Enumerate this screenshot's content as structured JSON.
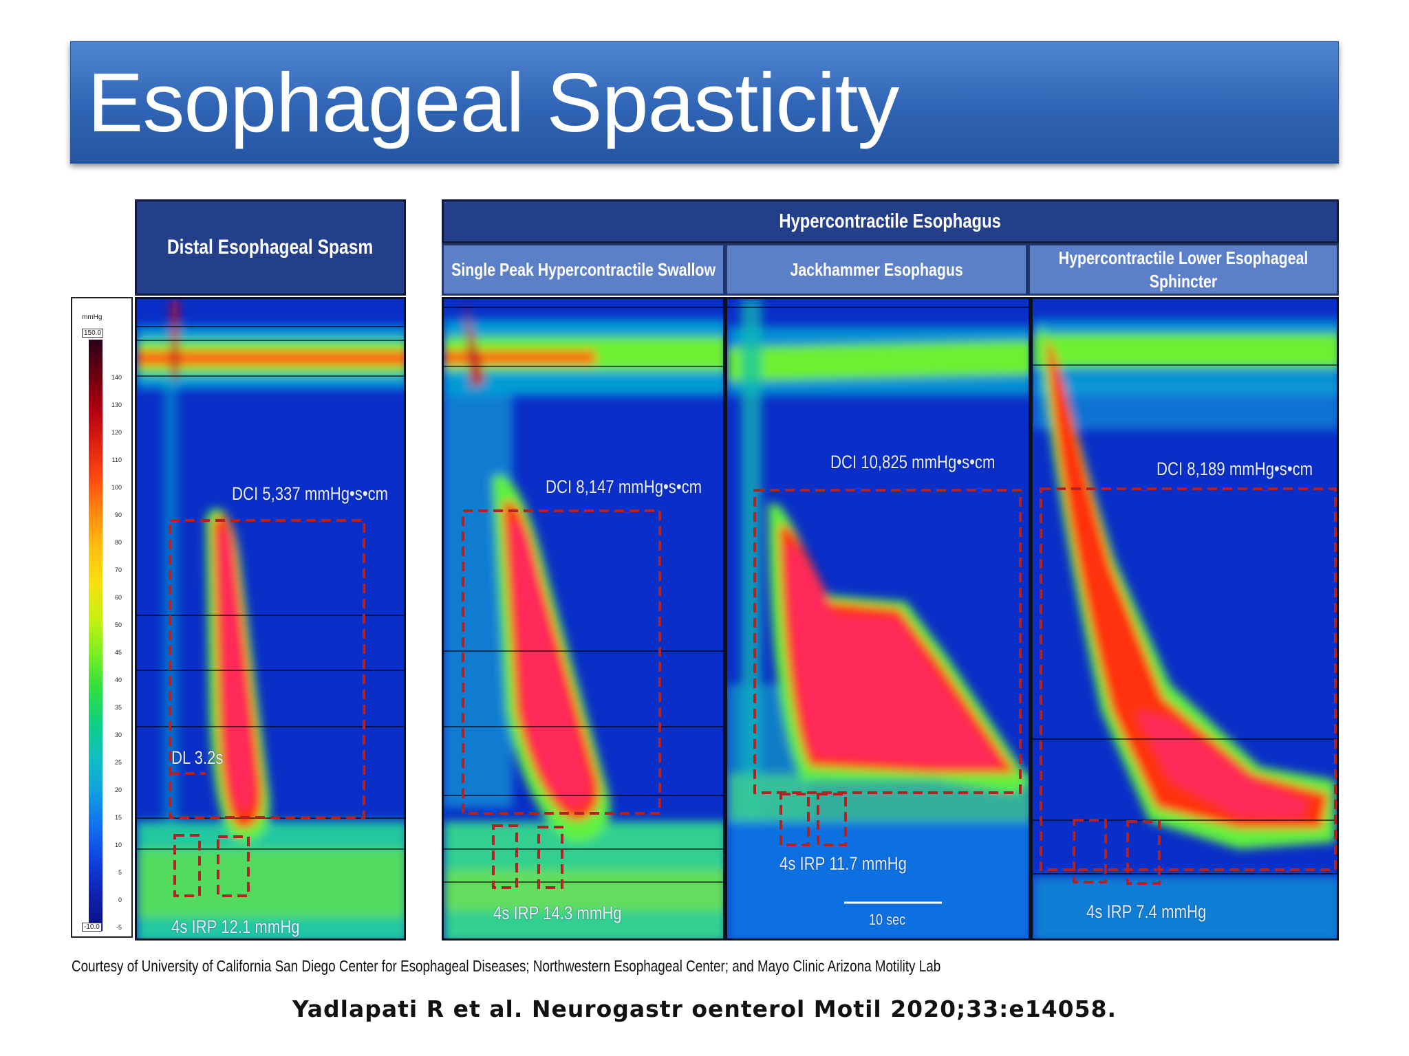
{
  "slide": {
    "title": "Esophageal Spasticity"
  },
  "headers": {
    "des": "Distal Esophageal Spasm",
    "hyper": "Hypercontractile Esophagus",
    "single": "Single Peak Hypercontractile Swallow",
    "jack": "Jackhammer Esophagus",
    "les_line1": "Hypercontractile Lower Esophageal",
    "les_line2": "Sphincter"
  },
  "scale": {
    "unit": "mmHg",
    "max": "150.0",
    "min": "-10.0",
    "ticks": [
      "140",
      "130",
      "120",
      "110",
      "100",
      "90",
      "80",
      "70",
      "60",
      "50",
      "45",
      "40",
      "35",
      "30",
      "25",
      "20",
      "15",
      "10",
      "5",
      "0",
      "-5"
    ],
    "colors": [
      "#2a001a",
      "#6b0010",
      "#b00010",
      "#e02010",
      "#ff4a10",
      "#ff8a10",
      "#ffc010",
      "#f6e010",
      "#c8f010",
      "#7ef020",
      "#30e040",
      "#10d080",
      "#10c0c0",
      "#10a0e0",
      "#1070f0",
      "#1040e0",
      "#1020b0",
      "#0a1080"
    ]
  },
  "annotations": {
    "des_dci": "DCI 5,337 mmHg•s•cm",
    "des_dl": "DL 3.2s",
    "des_irp": "4s IRP 12.1 mmHg",
    "single_dci": "DCI 8,147 mmHg•s•cm",
    "single_irp": "4s IRP 14.3 mmHg",
    "jack_dci": "DCI 10,825 mmHg•s•cm",
    "jack_irp": "4s IRP 11.7 mmHg",
    "jack_time": "10 sec",
    "les_dci": "DCI 8,189 mmHg•s•cm",
    "les_irp": "4s IRP 7.4 mmHg"
  },
  "footnote": "Courtesy of University of California San Diego Center for Esophageal Diseases; Northwestern Esophageal Center; and Mayo Clinic Arizona Motility Lab",
  "citation": "Yadlapati R et al. Neurogastr oenterol Motil  2020;33:e14058."
}
